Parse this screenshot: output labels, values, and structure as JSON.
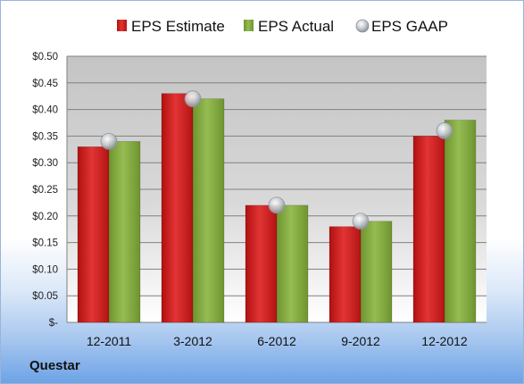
{
  "company": "Questar",
  "chart_data": {
    "type": "bar",
    "categories": [
      "12-2011",
      "3-2012",
      "6-2012",
      "9-2012",
      "12-2012"
    ],
    "series": [
      {
        "name": "EPS Estimate",
        "values": [
          0.33,
          0.43,
          0.22,
          0.18,
          0.35
        ],
        "color": "#cc1c1c"
      },
      {
        "name": "EPS Actual",
        "values": [
          0.34,
          0.42,
          0.22,
          0.19,
          0.38
        ],
        "color": "#7fa63a"
      }
    ],
    "markers": {
      "name": "EPS GAAP",
      "values": [
        0.34,
        0.42,
        0.22,
        0.19,
        0.36
      ],
      "color": "#b8bcc4"
    },
    "ylim": [
      0,
      0.5
    ],
    "yticks": [
      0,
      0.05,
      0.1,
      0.15,
      0.2,
      0.25,
      0.3,
      0.35,
      0.4,
      0.45,
      0.5
    ],
    "ytick_labels": [
      "$-",
      "$0.05",
      "$0.10",
      "$0.15",
      "$0.20",
      "$0.25",
      "$0.30",
      "$0.35",
      "$0.40",
      "$0.45",
      "$0.50"
    ],
    "grid": true,
    "legend_position": "top"
  }
}
